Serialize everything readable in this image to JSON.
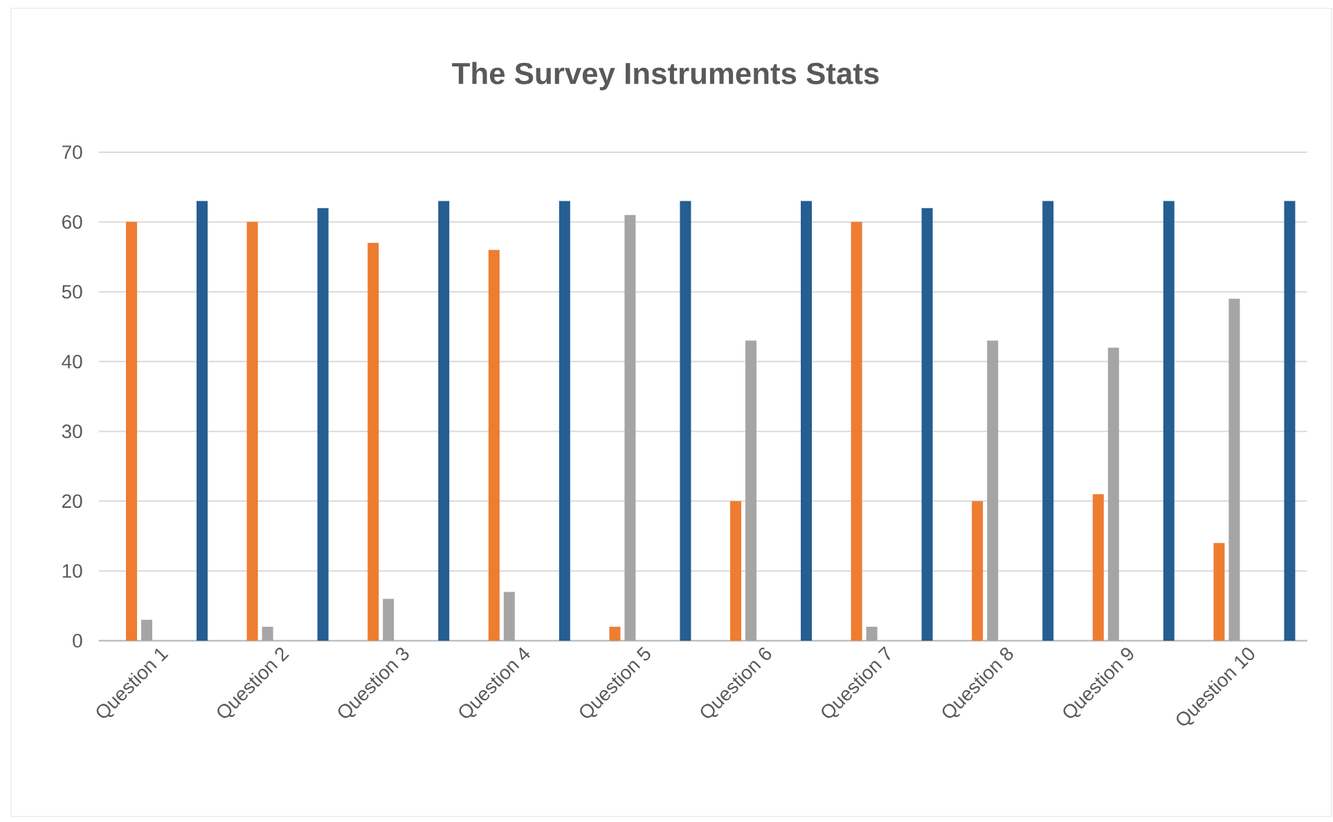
{
  "chart_data": {
    "type": "bar",
    "title": "The Survey Instruments Stats",
    "categories": [
      "Question 1",
      "Question 2",
      "Question 3",
      "Question 4",
      "Question 5",
      "Question 6",
      "Question 7",
      "Question 8",
      "Question 9",
      "Question 10"
    ],
    "series": [
      {
        "color": "#ed7d31",
        "values": [
          60,
          60,
          57,
          56,
          2,
          20,
          60,
          20,
          21,
          14
        ]
      },
      {
        "color": "#a5a5a5",
        "values": [
          3,
          2,
          6,
          7,
          61,
          43,
          2,
          43,
          42,
          49
        ]
      },
      {
        "color": "#255e91",
        "values": [
          63,
          62,
          63,
          63,
          63,
          63,
          62,
          63,
          63,
          63
        ]
      }
    ],
    "ylim": [
      0,
      70
    ],
    "yticks": [
      0,
      10,
      20,
      30,
      40,
      50,
      60,
      70
    ],
    "grid": "y"
  }
}
